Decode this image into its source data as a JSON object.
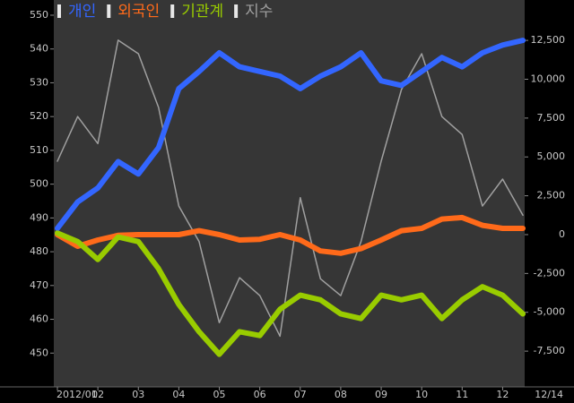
{
  "chart_data": {
    "type": "line",
    "categories": [
      "2012/01",
      null,
      "02",
      null,
      "03",
      null,
      "04",
      null,
      "05",
      null,
      "06",
      null,
      "07",
      null,
      "08",
      null,
      "09",
      null,
      "10",
      null,
      "11",
      null,
      "12",
      null
    ],
    "end_label": "12/14",
    "series": [
      {
        "name": "개인",
        "color": "#3366ff",
        "axis": "y2",
        "values": [
          400,
          2100,
          3000,
          4700,
          3900,
          5600,
          9400,
          10500,
          11700,
          10800,
          10500,
          10200,
          9400,
          10200,
          10800,
          11700,
          9900,
          9600,
          10500,
          11400,
          10800,
          11700,
          12200,
          12500
        ]
      },
      {
        "name": "외국인",
        "color": "#ff6a1a",
        "axis": "y2",
        "values": [
          0,
          -750,
          -350,
          -50,
          0,
          0,
          0,
          250,
          0,
          -350,
          -300,
          0,
          -350,
          -1050,
          -1200,
          -900,
          -350,
          250,
          400,
          1000,
          1100,
          600,
          400,
          400
        ]
      },
      {
        "name": "기관계",
        "color": "#99cc00",
        "axis": "y2",
        "values": [
          100,
          -450,
          -1600,
          -150,
          -450,
          -2200,
          -4500,
          -6250,
          -7700,
          -6250,
          -6500,
          -4800,
          -3900,
          -4200,
          -5100,
          -5400,
          -3900,
          -4200,
          -3900,
          -5400,
          -4200,
          -3350,
          -3900,
          -5100
        ]
      },
      {
        "name": "지수",
        "color": "#a0a0a0",
        "values": [
          506.8,
          520,
          512,
          542.6,
          538.6,
          522.7,
          493.5,
          483,
          459,
          472.3,
          467,
          455,
          496,
          472,
          467,
          483,
          506.8,
          528,
          538.6,
          520,
          514.7,
          493.5,
          501.5,
          490.8
        ]
      }
    ],
    "ylim": [
      440,
      554.5
    ],
    "yticks": [
      450,
      460,
      470,
      480,
      490,
      500,
      510,
      520,
      530,
      540,
      550
    ],
    "y2lim": [
      -9800,
      15100
    ],
    "y2ticks": [
      {
        "value": -7500,
        "label": "-7,500"
      },
      {
        "value": -5000,
        "label": "-5,000"
      },
      {
        "value": -2500,
        "label": "-2,500"
      },
      0,
      {
        "value": 2500,
        "label": "2,500"
      },
      {
        "value": 5000,
        "label": "5,000"
      },
      {
        "value": 7500,
        "label": "7,500"
      },
      {
        "value": 10000,
        "label": "10,000"
      },
      {
        "value": 12500,
        "label": "12,500"
      }
    ]
  }
}
